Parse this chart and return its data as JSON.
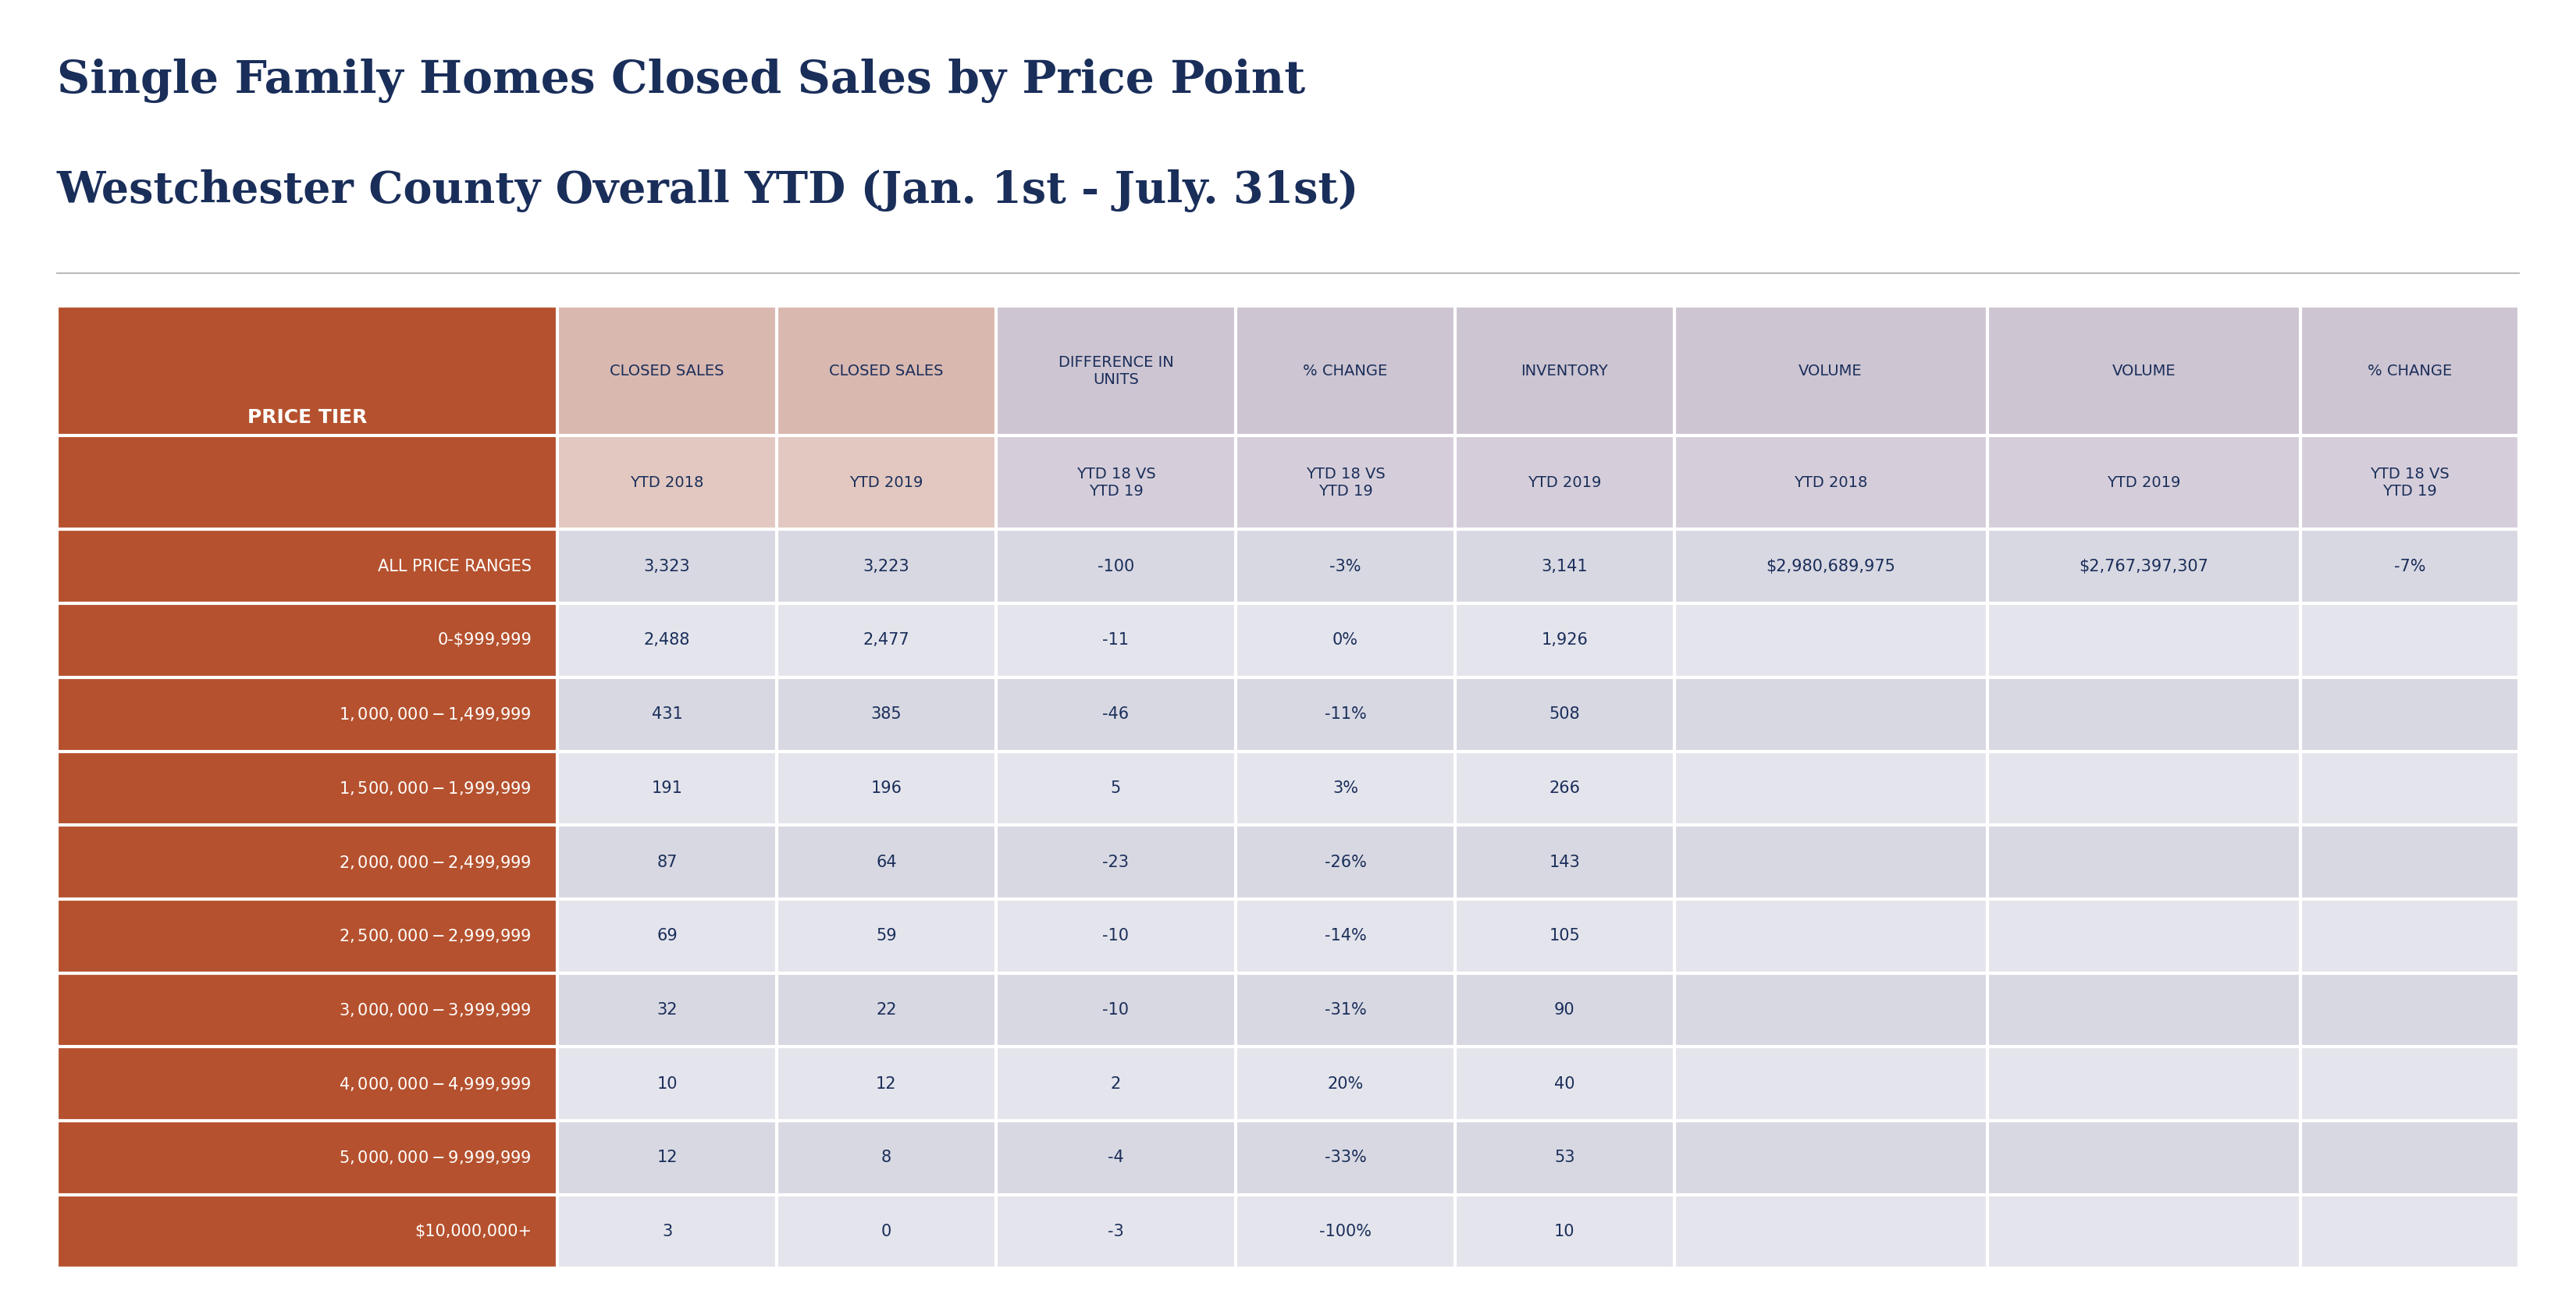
{
  "title_line1": "Single Family Homes Closed Sales by Price Point",
  "title_line2": "Westchester County Overall YTD (Jan. 1st - July. 31st)",
  "title_color": "#1a2e5a",
  "title_fontsize": 42,
  "title2_fontsize": 40,
  "col_headers_top": [
    "PRICE TIER",
    "CLOSED SALES",
    "CLOSED SALES",
    "DIFFERENCE IN\nUNITS",
    "% CHANGE",
    "INVENTORY",
    "VOLUME",
    "VOLUME",
    "% CHANGE"
  ],
  "col_headers_bottom": [
    "",
    "YTD 2018",
    "YTD 2019",
    "YTD 18 VS\nYTD 19",
    "YTD 18 VS\nYTD 19",
    "YTD 2019",
    "YTD 2018",
    "YTD 2019",
    "YTD 18 VS\nYTD 19"
  ],
  "price_tiers": [
    "ALL PRICE RANGES",
    "0-$999,999",
    "$1,000,000 - $1,499,999",
    "$1,500,000 - $1,999,999",
    "$2,000,000 - $2,499,999",
    "$2,500,000 - $2,999,999",
    "$3,000,000 - $3,999,999",
    "$4,000,000 - $4,999,999",
    "$5,000,000 - $9,999,999",
    "$10,000,000+"
  ],
  "closed_sales_2018": [
    "3,323",
    "2,488",
    "431",
    "191",
    "87",
    "69",
    "32",
    "10",
    "12",
    "3"
  ],
  "closed_sales_2019": [
    "3,223",
    "2,477",
    "385",
    "196",
    "64",
    "59",
    "22",
    "12",
    "8",
    "0"
  ],
  "diff_units": [
    "-100",
    "-11",
    "-46",
    "5",
    "-23",
    "-10",
    "-10",
    "2",
    "-4",
    "-3"
  ],
  "pct_change": [
    "-3%",
    "0%",
    "-11%",
    "3%",
    "-26%",
    "-14%",
    "-31%",
    "20%",
    "-33%",
    "-100%"
  ],
  "inventory_2019": [
    "3,141",
    "1,926",
    "508",
    "266",
    "143",
    "105",
    "90",
    "40",
    "53",
    "10"
  ],
  "volume_2018": [
    "$2,980,689,975",
    "",
    "",
    "",
    "",
    "",
    "",
    "",
    "",
    ""
  ],
  "volume_2019": [
    "$2,767,397,307",
    "",
    "",
    "",
    "",
    "",
    "",
    "",
    "",
    ""
  ],
  "pct_change_vol": [
    "-7%",
    "",
    "",
    "",
    "",
    "",
    "",
    "",
    "",
    ""
  ],
  "price_tier_header_bg": "#b5512e",
  "price_tier_row_bg": "#b5512e",
  "header_col1_bg": "#d9b8b0",
  "header_col1_sub_bg": "#e2c8c0",
  "header_col2_bg": "#cdc5d2",
  "header_col2_sub_bg": "#d5ceda",
  "row_odd_bg": "#d8d8e2",
  "row_even_bg": "#e4e4ec",
  "header_text_color": "#1a2e5a",
  "cell_text_color": "#1a2e5a",
  "price_tier_text_color": "#ffffff",
  "bg_color": "#ffffff",
  "separator_color": "#ffffff",
  "line_color": "#bbbbbb"
}
